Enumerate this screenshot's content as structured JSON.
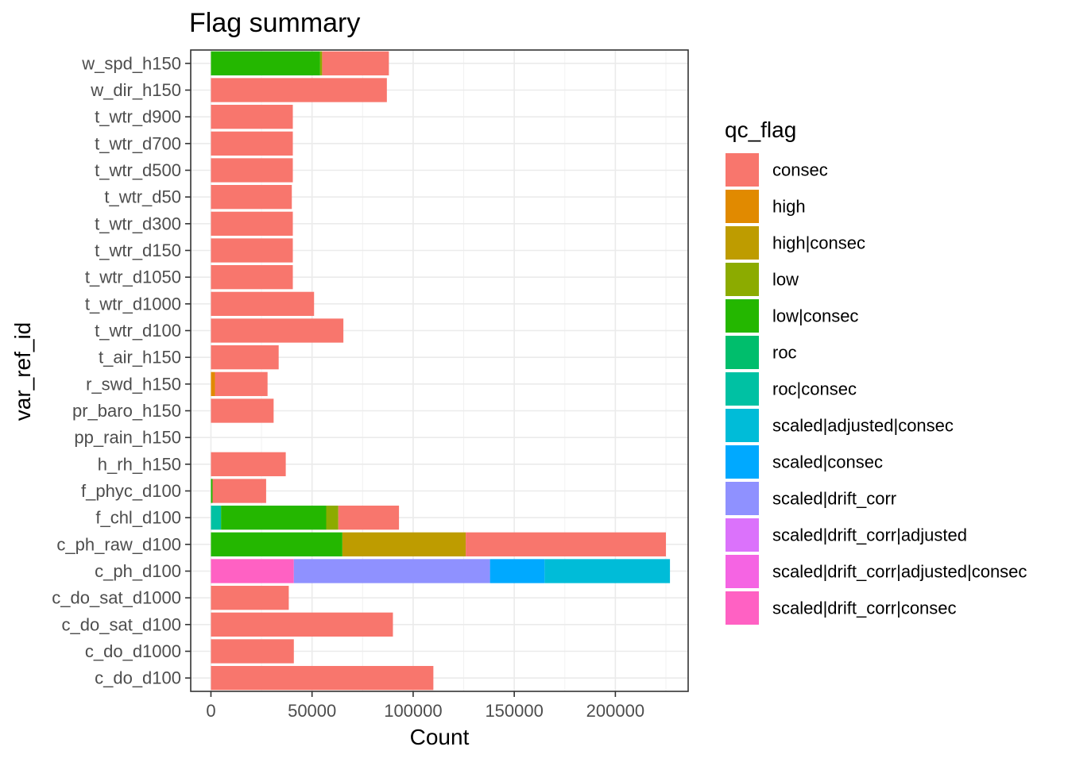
{
  "chart_data": {
    "type": "bar",
    "orientation": "horizontal",
    "stacked": true,
    "title": "Flag summary",
    "xlabel": "Count",
    "ylabel": "var_ref_id",
    "xlim": [
      -10000,
      236000
    ],
    "x_ticks": [
      0,
      50000,
      100000,
      150000,
      200000
    ],
    "x_tick_labels": [
      "0",
      "50000",
      "100000",
      "150000",
      "200000"
    ],
    "grid": true,
    "legend_position": "right",
    "legend_title": "qc_flag",
    "categories": [
      "w_spd_h150",
      "w_dir_h150",
      "t_wtr_d900",
      "t_wtr_d700",
      "t_wtr_d500",
      "t_wtr_d50",
      "t_wtr_d300",
      "t_wtr_d150",
      "t_wtr_d1050",
      "t_wtr_d1000",
      "t_wtr_d100",
      "t_air_h150",
      "r_swd_h150",
      "pr_baro_h150",
      "pp_rain_h150",
      "h_rh_h150",
      "f_phyc_d100",
      "f_chl_d100",
      "c_ph_raw_d100",
      "c_ph_d100",
      "c_do_sat_d1000",
      "c_do_sat_d100",
      "c_do_d1000",
      "c_do_d100"
    ],
    "series": [
      {
        "name": "scaled|drift_corr|consec",
        "color": "#FF61C3",
        "values": [
          0,
          0,
          0,
          0,
          0,
          0,
          0,
          0,
          0,
          0,
          0,
          0,
          0,
          0,
          0,
          0,
          0,
          0,
          0,
          41000,
          0,
          0,
          0,
          0
        ]
      },
      {
        "name": "scaled|drift_corr|adjusted|consec",
        "color": "#F564E3",
        "values": [
          0,
          0,
          0,
          0,
          0,
          0,
          0,
          0,
          0,
          0,
          0,
          0,
          0,
          0,
          0,
          0,
          0,
          0,
          0,
          0,
          0,
          0,
          0,
          0
        ]
      },
      {
        "name": "scaled|drift_corr|adjusted",
        "color": "#DB72FB",
        "values": [
          0,
          0,
          0,
          0,
          0,
          0,
          0,
          0,
          0,
          0,
          0,
          0,
          0,
          0,
          0,
          0,
          0,
          0,
          0,
          0,
          0,
          0,
          0,
          0
        ]
      },
      {
        "name": "scaled|drift_corr",
        "color": "#8F91FF",
        "values": [
          0,
          0,
          0,
          0,
          0,
          0,
          0,
          0,
          0,
          0,
          0,
          0,
          0,
          0,
          0,
          0,
          0,
          0,
          0,
          97000,
          0,
          0,
          0,
          0
        ]
      },
      {
        "name": "scaled|consec",
        "color": "#00A9FF",
        "values": [
          0,
          0,
          0,
          0,
          0,
          0,
          0,
          0,
          0,
          0,
          0,
          0,
          0,
          0,
          0,
          0,
          0,
          0,
          0,
          27000,
          0,
          0,
          0,
          0
        ]
      },
      {
        "name": "scaled|adjusted|consec",
        "color": "#00BCD8",
        "values": [
          0,
          0,
          0,
          0,
          0,
          0,
          0,
          0,
          0,
          0,
          0,
          0,
          0,
          0,
          0,
          0,
          0,
          0,
          0,
          62000,
          0,
          0,
          0,
          0
        ]
      },
      {
        "name": "roc|consec",
        "color": "#00C1A3",
        "values": [
          0,
          0,
          0,
          0,
          0,
          0,
          0,
          0,
          0,
          0,
          0,
          0,
          0,
          0,
          0,
          0,
          0,
          5000,
          0,
          0,
          0,
          0,
          0,
          0
        ]
      },
      {
        "name": "roc",
        "color": "#00BE6C",
        "values": [
          0,
          0,
          0,
          0,
          0,
          0,
          0,
          0,
          0,
          0,
          0,
          0,
          0,
          0,
          0,
          0,
          0,
          0,
          0,
          0,
          0,
          0,
          0,
          0
        ]
      },
      {
        "name": "low|consec",
        "color": "#24B700",
        "values": [
          54000,
          0,
          0,
          0,
          0,
          0,
          0,
          0,
          0,
          0,
          0,
          0,
          0,
          0,
          0,
          0,
          800,
          52000,
          65000,
          0,
          0,
          0,
          0,
          0
        ]
      },
      {
        "name": "low",
        "color": "#8CAB00",
        "values": [
          1000,
          0,
          0,
          0,
          0,
          0,
          0,
          0,
          0,
          0,
          0,
          0,
          0,
          0,
          0,
          0,
          0,
          6000,
          0,
          0,
          0,
          0,
          0,
          0
        ]
      },
      {
        "name": "high|consec",
        "color": "#BE9C00",
        "values": [
          0,
          0,
          0,
          0,
          0,
          0,
          0,
          0,
          0,
          0,
          0,
          0,
          0,
          0,
          0,
          0,
          0,
          0,
          61000,
          0,
          0,
          0,
          0,
          0
        ]
      },
      {
        "name": "high",
        "color": "#E18A00",
        "values": [
          0,
          0,
          0,
          0,
          0,
          0,
          0,
          0,
          0,
          0,
          0,
          0,
          2000,
          0,
          0,
          0,
          0,
          0,
          0,
          0,
          0,
          0,
          0,
          0
        ]
      },
      {
        "name": "consec",
        "color": "#F8766D",
        "values": [
          33000,
          87000,
          40500,
          40500,
          40500,
          40000,
          40500,
          40500,
          40500,
          51000,
          65500,
          33500,
          26000,
          31000,
          0,
          37000,
          26500,
          30000,
          99000,
          0,
          38500,
          90000,
          41000,
          110000
        ]
      }
    ],
    "legend_entries": [
      {
        "label": "consec",
        "color": "#F8766D"
      },
      {
        "label": "high",
        "color": "#E18A00"
      },
      {
        "label": "high|consec",
        "color": "#BE9C00"
      },
      {
        "label": "low",
        "color": "#8CAB00"
      },
      {
        "label": "low|consec",
        "color": "#24B700"
      },
      {
        "label": "roc",
        "color": "#00BE6C"
      },
      {
        "label": "roc|consec",
        "color": "#00C1A3"
      },
      {
        "label": "scaled|adjusted|consec",
        "color": "#00BCD8"
      },
      {
        "label": "scaled|consec",
        "color": "#00A9FF"
      },
      {
        "label": "scaled|drift_corr",
        "color": "#8F91FF"
      },
      {
        "label": "scaled|drift_corr|adjusted",
        "color": "#DB72FB"
      },
      {
        "label": "scaled|drift_corr|adjusted|consec",
        "color": "#F564E3"
      },
      {
        "label": "scaled|drift_corr|consec",
        "color": "#FF61C3"
      }
    ]
  }
}
